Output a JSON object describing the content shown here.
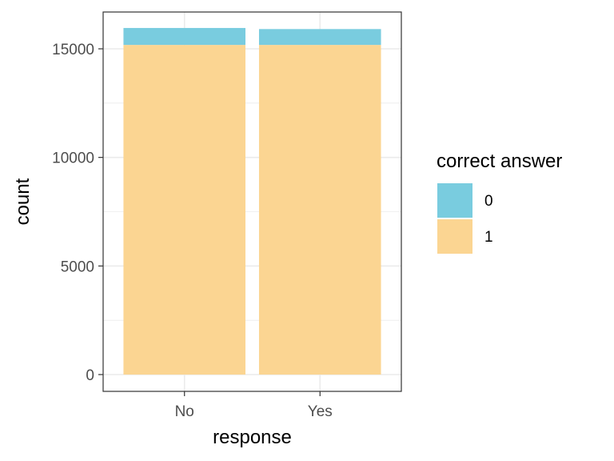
{
  "chart_data": {
    "type": "bar",
    "stacked": true,
    "categories": [
      "No",
      "Yes"
    ],
    "series": [
      {
        "name": "1",
        "values": [
          15180,
          15180
        ],
        "color": "#FBD592"
      },
      {
        "name": "0",
        "values": [
          780,
          730
        ],
        "color": "#79CCDF"
      }
    ],
    "xlabel": "response",
    "ylabel": "count",
    "ylim": [
      0,
      16600
    ],
    "yticks": [
      0,
      5000,
      10000,
      15000
    ],
    "ytick_labels": [
      "0",
      "5000",
      "10000",
      "15000"
    ],
    "grid": true,
    "legend": {
      "title": "correct answer",
      "entries": [
        "0",
        "1"
      ],
      "placement": "right"
    },
    "panel_border": "#333333",
    "grid_color": "#ebebeb"
  }
}
